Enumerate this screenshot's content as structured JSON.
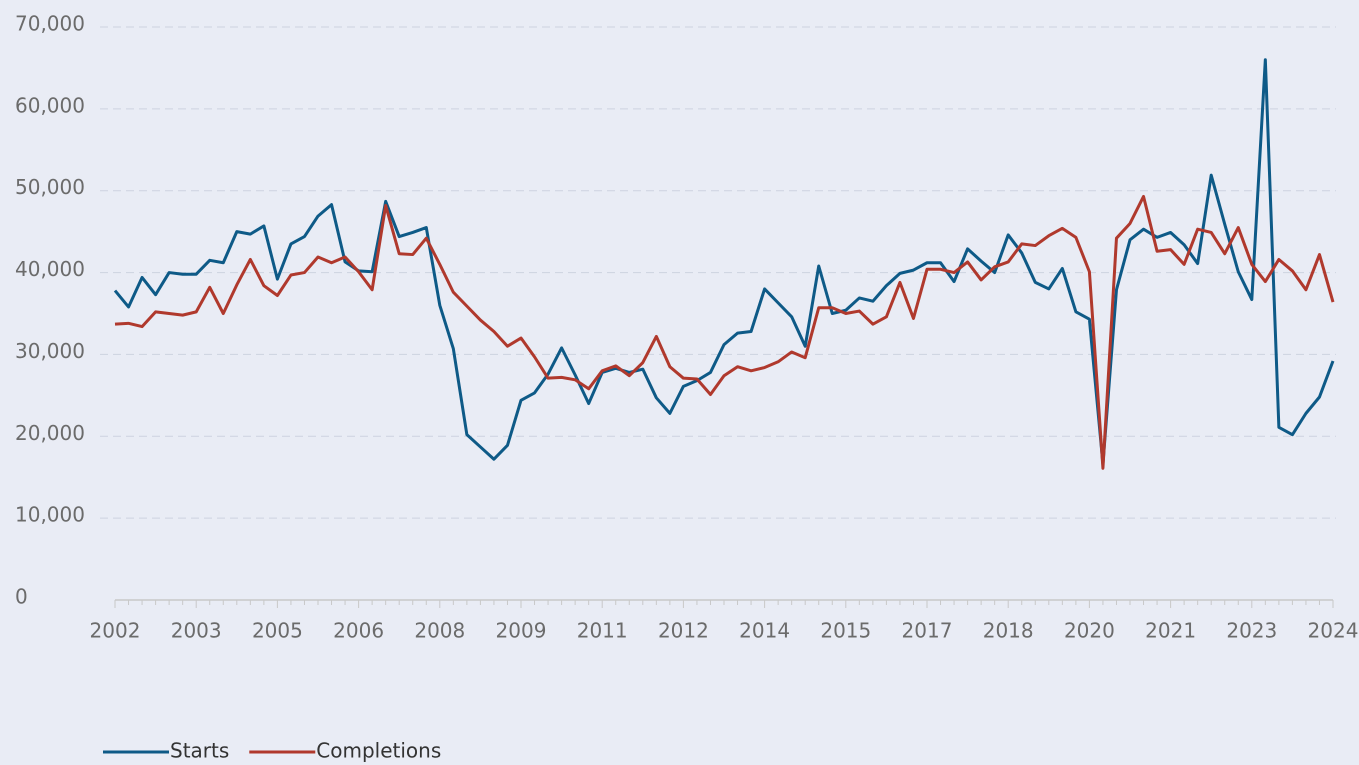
{
  "chart_data": {
    "type": "line",
    "categories": [
      "2002",
      null,
      null,
      null,
      null,
      null,
      "2003",
      null,
      null,
      null,
      null,
      null,
      "2005",
      null,
      null,
      null,
      null,
      null,
      "2006",
      null,
      null,
      null,
      null,
      null,
      "2008",
      null,
      null,
      null,
      null,
      null,
      "2009",
      null,
      null,
      null,
      null,
      null,
      "2011",
      null,
      null,
      null,
      null,
      null,
      "2012",
      null,
      null,
      null,
      null,
      null,
      "2014",
      null,
      null,
      null,
      null,
      null,
      "2015",
      null,
      null,
      null,
      null,
      null,
      "2017",
      null,
      null,
      null,
      null,
      null,
      "2018",
      null,
      null,
      null,
      null,
      null,
      "2020",
      null,
      null,
      null,
      null,
      null,
      "2021",
      null,
      null,
      null,
      null,
      null,
      "2023",
      null,
      null,
      null,
      null,
      null,
      "2024"
    ],
    "series": [
      {
        "name": "Starts",
        "color": "#0e5a87",
        "values": [
          37800,
          35800,
          39400,
          37300,
          40000,
          39800,
          39800,
          41500,
          41200,
          45000,
          44700,
          45700,
          39200,
          43500,
          44400,
          46900,
          48300,
          41300,
          40200,
          40100,
          48700,
          44400,
          44900,
          45500,
          36000,
          30700,
          20200,
          18700,
          17200,
          18900,
          24400,
          25300,
          27600,
          30800,
          27500,
          24000,
          27800,
          28300,
          27800,
          28200,
          24700,
          22800,
          26100,
          26800,
          27800,
          31200,
          32600,
          32800,
          38000,
          36300,
          34600,
          31000,
          40800,
          35000,
          35400,
          36900,
          36500,
          38400,
          39900,
          40300,
          41200,
          41200,
          38900,
          42900,
          41400,
          40000,
          44600,
          42400,
          38800,
          38000,
          40500,
          35200,
          34300,
          16600,
          37900,
          44000,
          45300,
          44300,
          44900,
          43400,
          41100,
          51900,
          45900,
          40100,
          36700,
          66000,
          21100,
          20200,
          22800,
          24800,
          29200
        ]
      },
      {
        "name": "Completions",
        "color": "#b0392d",
        "values": [
          33700,
          33800,
          33400,
          35200,
          35000,
          34800,
          35200,
          38200,
          35000,
          38500,
          41600,
          38400,
          37200,
          39700,
          40000,
          41900,
          41200,
          41900,
          40100,
          37900,
          48200,
          42300,
          42200,
          44200,
          41000,
          37600,
          35900,
          34200,
          32800,
          31000,
          32000,
          29700,
          27100,
          27200,
          26900,
          25800,
          28000,
          28600,
          27400,
          29000,
          32200,
          28500,
          27100,
          27000,
          25100,
          27400,
          28500,
          28000,
          28400,
          29100,
          30300,
          29600,
          35700,
          35700,
          35000,
          35300,
          33700,
          34600,
          38800,
          34400,
          40400,
          40400,
          40000,
          41300,
          39100,
          40700,
          41300,
          43500,
          43300,
          44500,
          45400,
          44300,
          40100,
          16100,
          44200,
          46000,
          49300,
          42600,
          42800,
          41000,
          45300,
          44900,
          42300,
          45500,
          41000,
          38900,
          41600,
          40200,
          37900,
          42200,
          36400
        ]
      }
    ],
    "ylim": [
      0,
      70000
    ],
    "yticks": [
      0,
      {
        "value": 10000,
        "label": "10,000"
      },
      {
        "value": 20000,
        "label": "20,000"
      },
      {
        "value": 30000,
        "label": "30,000"
      },
      {
        "value": 40000,
        "label": "40,000"
      },
      {
        "value": 50000,
        "label": "50,000"
      },
      {
        "value": 60000,
        "label": "60,000"
      },
      {
        "value": 70000,
        "label": "70,000"
      }
    ],
    "grid": true,
    "legend": "bottom-left"
  }
}
